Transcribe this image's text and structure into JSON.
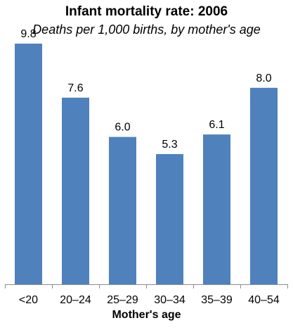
{
  "chart_data": {
    "type": "bar",
    "title": "Infant mortality rate: 2006",
    "subtitle": "Deaths per 1,000 births, by mother's age",
    "xlabel": "Mother's age",
    "ylabel": "",
    "categories": [
      "<20",
      "20–24",
      "25–29",
      "30–34",
      "35–39",
      "40–54"
    ],
    "values": [
      9.8,
      7.6,
      6.0,
      5.3,
      6.1,
      8.0
    ],
    "data_labels": [
      "9.8",
      "7.6",
      "6.0",
      "5.3",
      "6.1",
      "8.0"
    ],
    "ylim": [
      0,
      10
    ],
    "grid": false,
    "legend": "none",
    "bar_color": "#4f81bd"
  }
}
